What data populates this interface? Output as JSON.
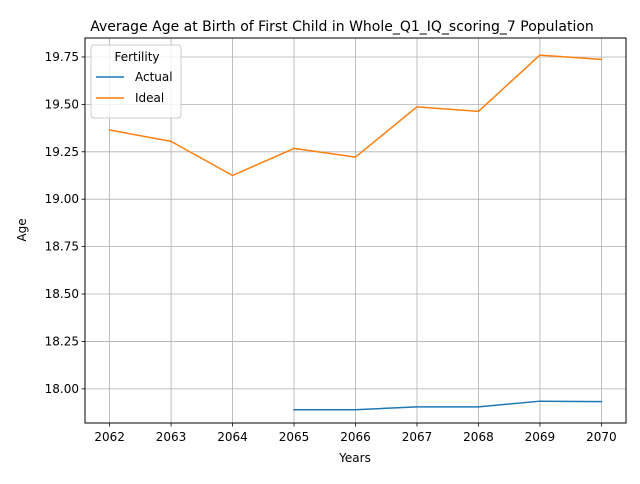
{
  "chart_data": {
    "type": "line",
    "title": "Average Age at Birth of First Child in Whole_Q1_IQ_scoring_7 Population",
    "xlabel": "Years",
    "ylabel": "Age",
    "x": [
      2062,
      2063,
      2064,
      2065,
      2066,
      2067,
      2068,
      2069,
      2070
    ],
    "x_tick_labels": [
      "2062",
      "2063",
      "2064",
      "2065",
      "2066",
      "2067",
      "2068",
      "2069",
      "2070"
    ],
    "y_ticks": [
      18.0,
      18.25,
      18.5,
      18.75,
      19.0,
      19.25,
      19.5,
      19.75
    ],
    "y_tick_labels": [
      "18.00",
      "18.25",
      "18.50",
      "18.75",
      "19.00",
      "19.25",
      "19.50",
      "19.75"
    ],
    "xlim": [
      2061.6,
      2070.4
    ],
    "ylim": [
      17.82,
      19.85
    ],
    "grid": true,
    "legend": {
      "title": "Fertility",
      "placement": "upper-left"
    },
    "series": [
      {
        "name": "Actual",
        "color": "#1f77b4",
        "values": [
          null,
          null,
          null,
          17.89,
          17.89,
          17.905,
          17.905,
          17.935,
          17.933
        ]
      },
      {
        "name": "Ideal",
        "color": "#ff7f0e",
        "values": [
          19.365,
          19.305,
          19.125,
          19.268,
          19.222,
          19.487,
          19.463,
          19.76,
          19.737
        ]
      }
    ]
  }
}
